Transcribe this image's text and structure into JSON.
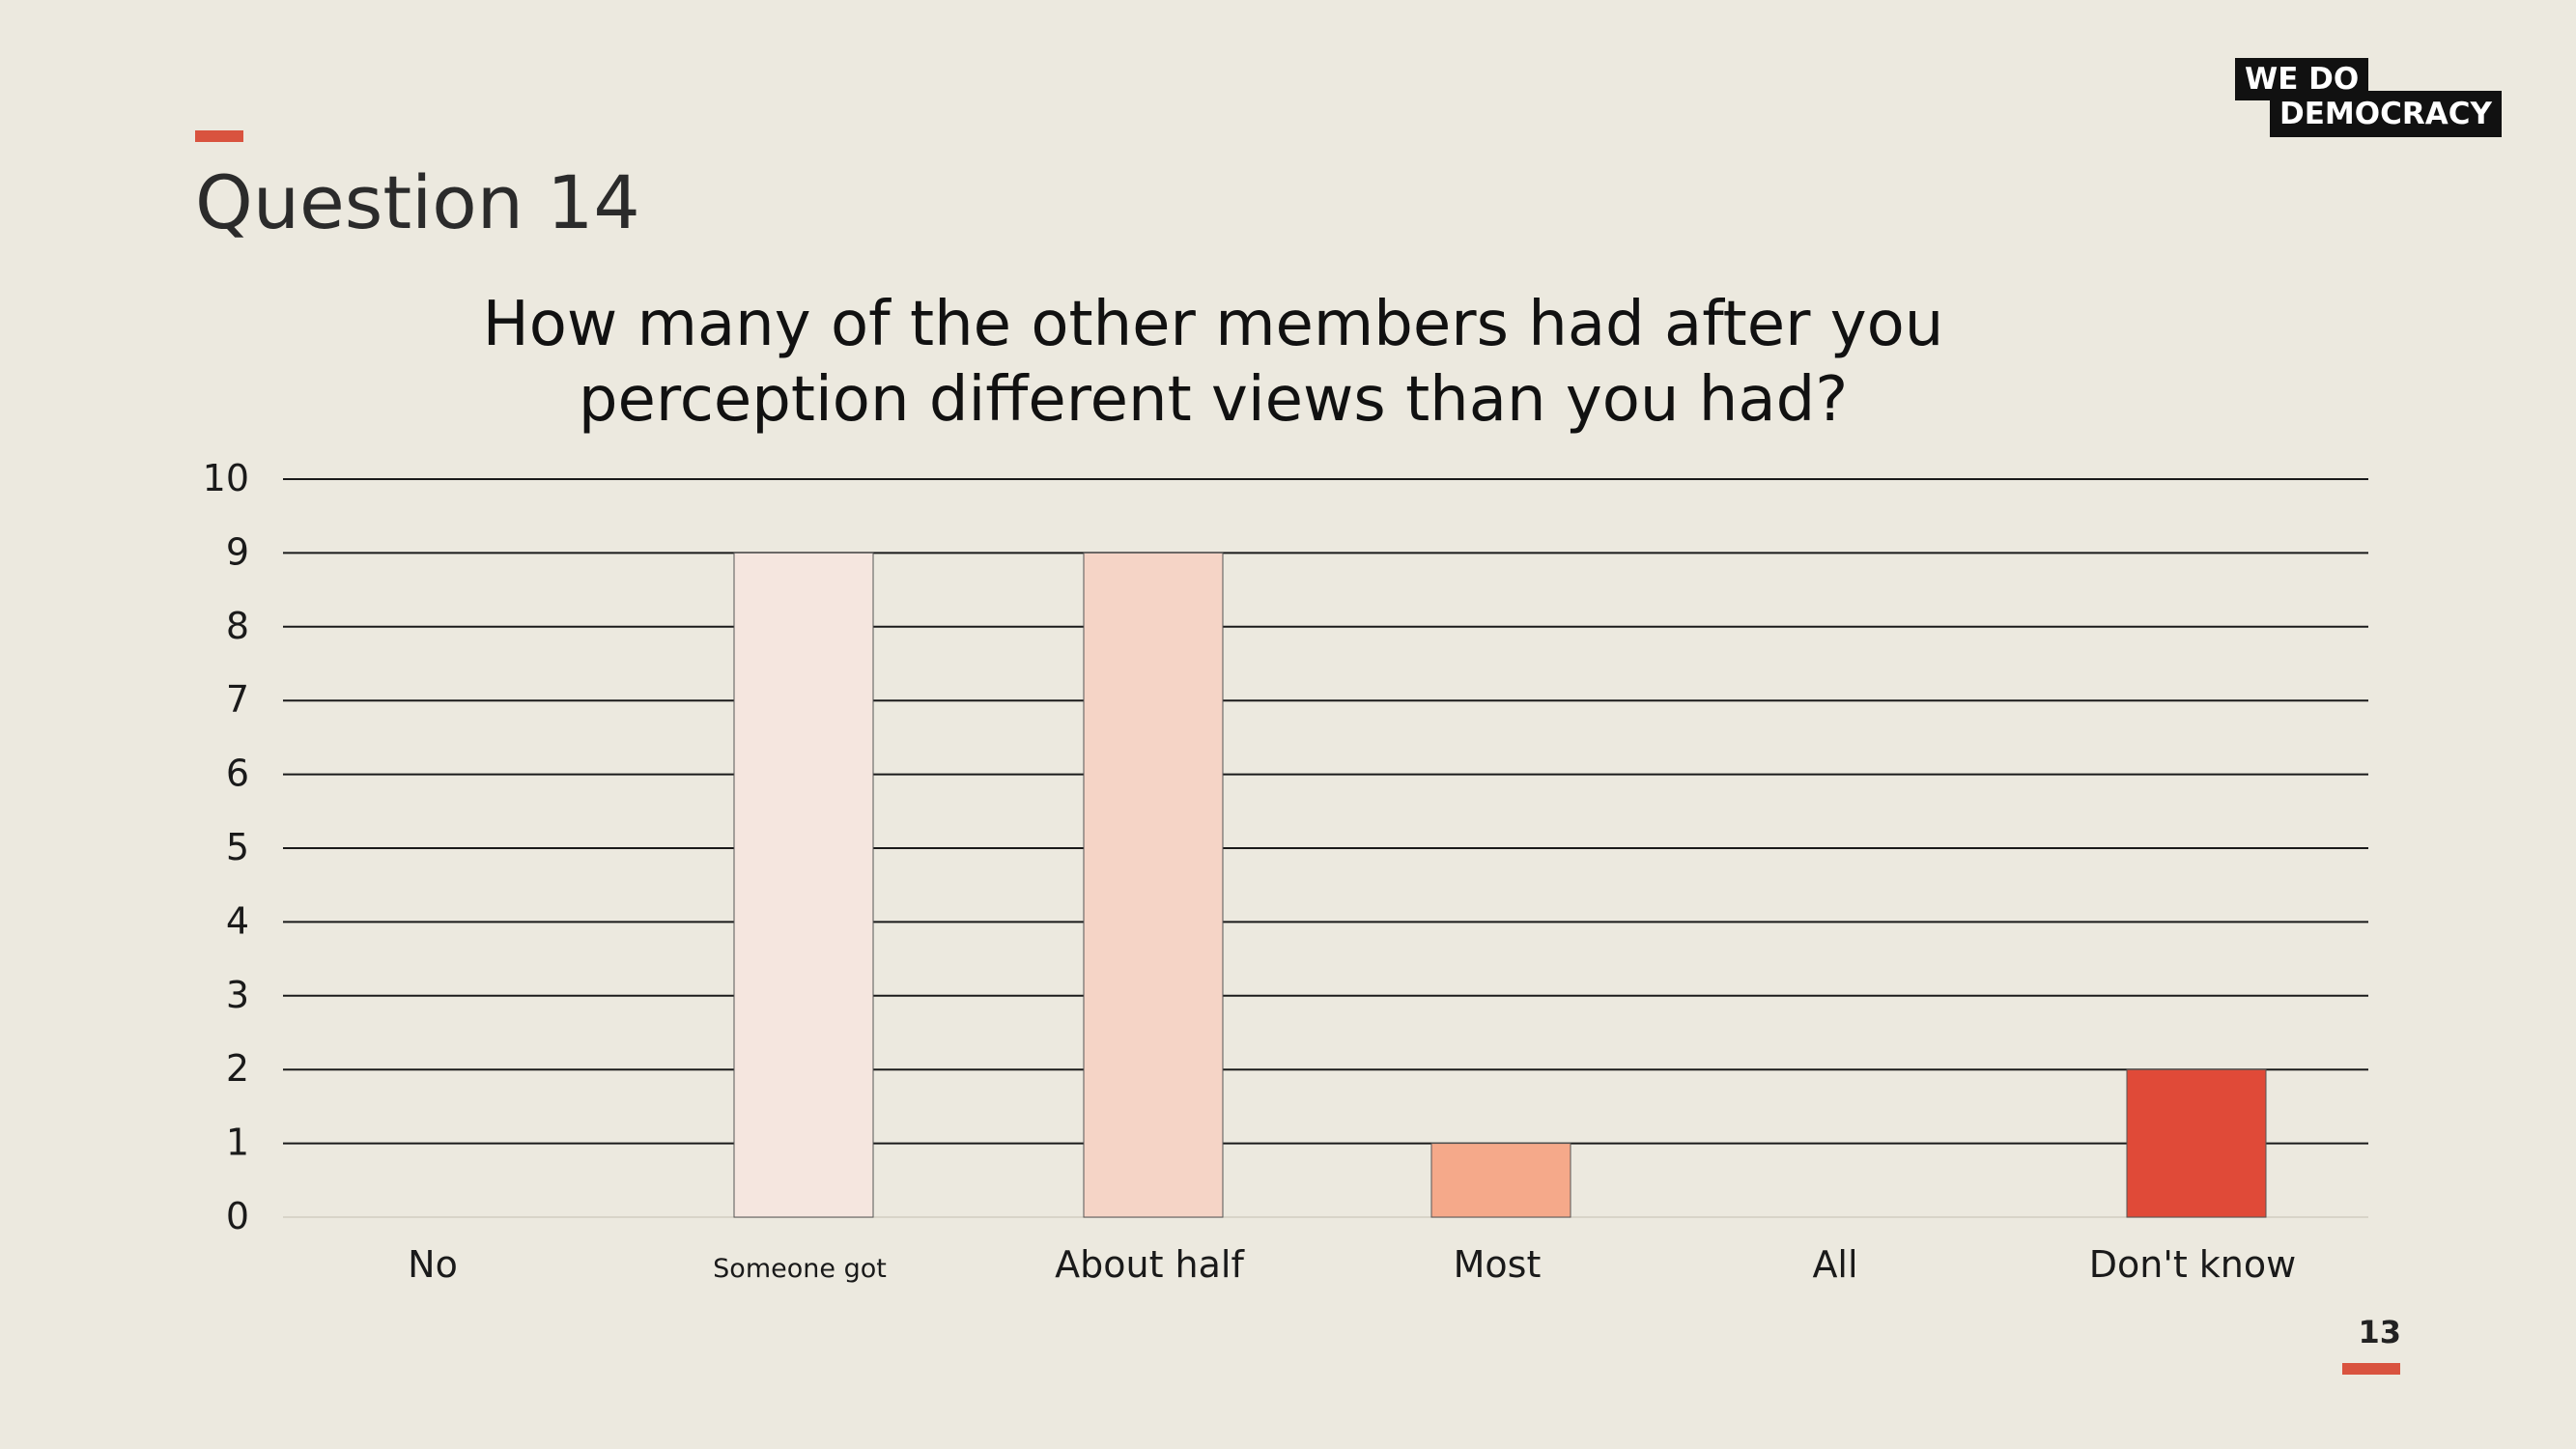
{
  "slide": {
    "title": "Question 14",
    "page_number": "13",
    "accent_color": "#D9533F",
    "background_color": "#ECE9DF"
  },
  "logo": {
    "line1": "WE  DO",
    "line2": "DEMOCRACY"
  },
  "chart_data": {
    "type": "bar",
    "title": "How many of the other members had after you perception different views than you had?",
    "title_lines": [
      "How many of the other members had after you",
      "perception different views than you had?"
    ],
    "categories": [
      "No",
      "Someone got",
      "About half",
      "Most",
      "All",
      "Don't know"
    ],
    "values": [
      0,
      9,
      9,
      1,
      0,
      2
    ],
    "colors": [
      "#F5E6DF",
      "#F5E6DF",
      "#F5D4C6",
      "#F5A98A",
      "#E8634A",
      "#E04A38"
    ],
    "ylim": [
      0,
      10
    ],
    "yticks": [
      "0",
      "1",
      "2",
      "3",
      "4",
      "5",
      "6",
      "7",
      "8",
      "9",
      "10"
    ],
    "xlabel": "",
    "ylabel": "",
    "grid": true,
    "legend": "none"
  }
}
